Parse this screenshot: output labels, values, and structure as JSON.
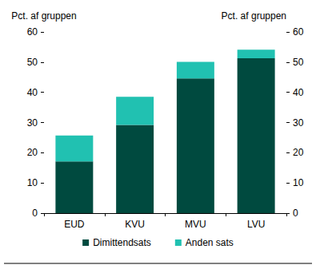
{
  "chart_data": {
    "type": "bar",
    "stacked": true,
    "ylabel": "Pct. af gruppen",
    "y2label": "Pct. af gruppen",
    "categories": [
      "EUD",
      "KVU",
      "MVU",
      "LVU"
    ],
    "series": [
      {
        "name": "Dimittendsats",
        "color": "#004a3f",
        "values": [
          17.1,
          29.2,
          44.6,
          51.3
        ]
      },
      {
        "name": "Anden sats",
        "color": "#21c1b1",
        "values": [
          8.6,
          9.3,
          5.5,
          2.8
        ]
      }
    ],
    "ylim": [
      0,
      60
    ],
    "yticks": [
      0,
      10,
      20,
      30,
      40,
      50,
      60
    ],
    "y2lim": [
      0,
      60
    ],
    "y2ticks": [
      0,
      10,
      20,
      30,
      40,
      50,
      60
    ],
    "legend": "bottom",
    "grid": false
  }
}
